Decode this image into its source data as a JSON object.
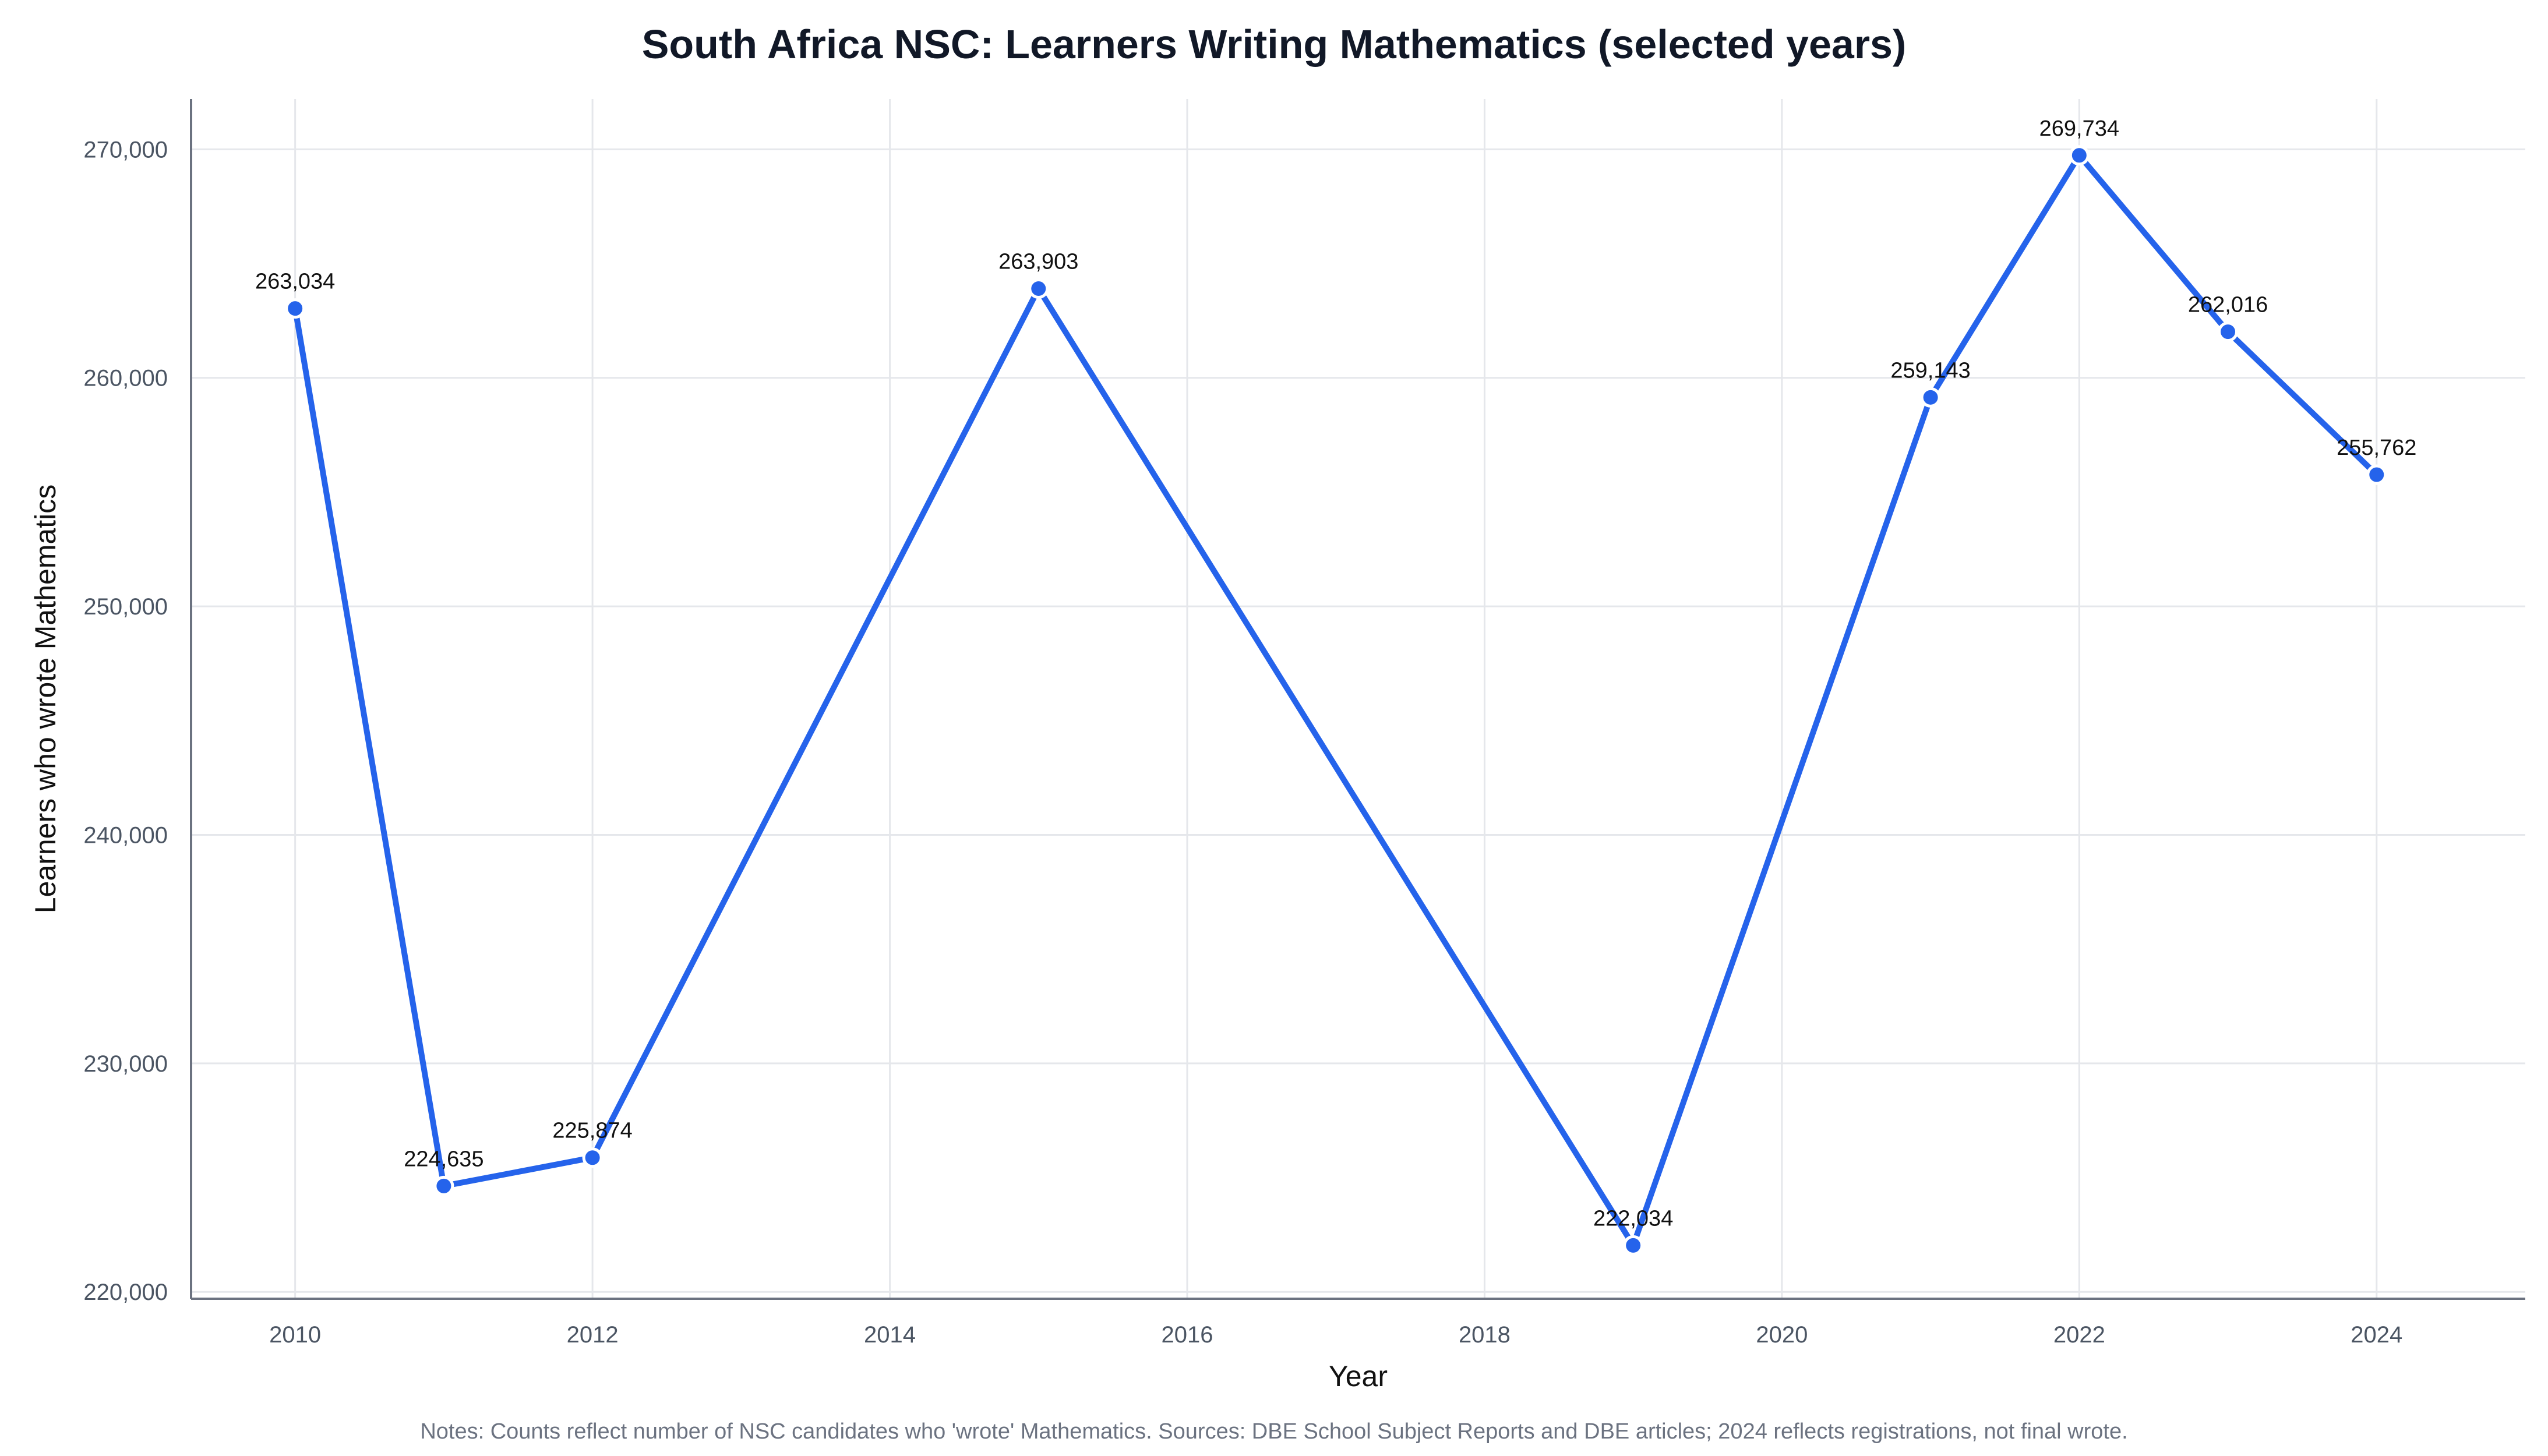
{
  "chart_data": {
    "type": "line",
    "title": "South Africa NSC: Learners Writing Mathematics (selected years)",
    "xlabel": "Year",
    "ylabel": "Learners who wrote Mathematics",
    "x": [
      2010,
      2011,
      2012,
      2015,
      2019,
      2021,
      2022,
      2023,
      2024
    ],
    "series": [
      {
        "values": [
          263034,
          224635,
          225874,
          263903,
          222034,
          259143,
          269734,
          262016,
          255762
        ]
      }
    ],
    "data_labels": [
      "263,034",
      "224,635",
      "225,874",
      "263,903",
      "222,034",
      "259,143",
      "269,734",
      "262,016",
      "255,762"
    ],
    "xticks": [
      2010,
      2012,
      2014,
      2016,
      2018,
      2020,
      2022,
      2024
    ],
    "xtick_labels": [
      "2010",
      "2012",
      "2014",
      "2016",
      "2018",
      "2020",
      "2022",
      "2024"
    ],
    "yticks": [
      220000,
      230000,
      240000,
      250000,
      260000,
      270000
    ],
    "ytick_labels": [
      "220,000",
      "230,000",
      "240,000",
      "250,000",
      "260,000",
      "270,000"
    ],
    "xlim": [
      2009.3,
      2025.0
    ],
    "ylim": [
      219700,
      272200
    ],
    "grid": true,
    "colors": {
      "line": "#2563eb",
      "marker_edge": "#ffffff",
      "grid": "#e5e7eb",
      "axis": "#6b7280"
    },
    "note": "Notes: Counts reflect number of NSC candidates who 'wrote' Mathematics. Sources: DBE School Subject Reports and DBE articles; 2024 reflects registrations, not final wrote."
  }
}
